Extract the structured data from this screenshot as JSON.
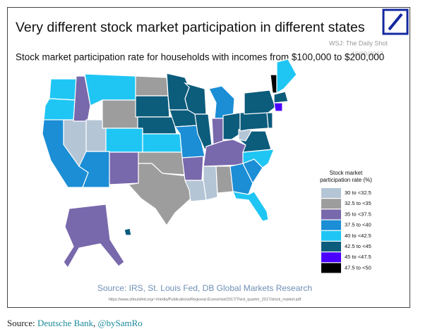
{
  "header": {
    "title": "Very different stock market participation in different states",
    "credit": "WSJ: The Daily Shot",
    "date": "10/09/2017",
    "subtitle": "Stock market participation rate for households with incomes from $100,000 to $200,000"
  },
  "legend": {
    "title_lines": [
      "Stock market",
      "participation rate (%)"
    ],
    "items": [
      {
        "label": "30 to <32.5",
        "color": "#b4c5d5"
      },
      {
        "label": "32.5 to <35",
        "color": "#9d9d9d"
      },
      {
        "label": "35 to <37.5",
        "color": "#7868ac"
      },
      {
        "label": "37.5 to <40",
        "color": "#1b8ed6"
      },
      {
        "label": "40 to <42.5",
        "color": "#1fc6f4"
      },
      {
        "label": "42.5 to <45",
        "color": "#0c5c7c"
      },
      {
        "label": "45 to <47.5",
        "color": "#4a00ff"
      },
      {
        "label": "47.5 to <50",
        "color": "#000000"
      }
    ]
  },
  "source": "Source: IRS, St. Louis Fed, DB Global Markets Research",
  "url": "https://www.stlouisfed.org/~/media/Publications/Regional-Economist/2017/Third_quarter_2017/stock_market.pdf",
  "footer": {
    "prefix": "Source:",
    "links": [
      "Deutsche Bank",
      "@bySamRo"
    ]
  }
}
